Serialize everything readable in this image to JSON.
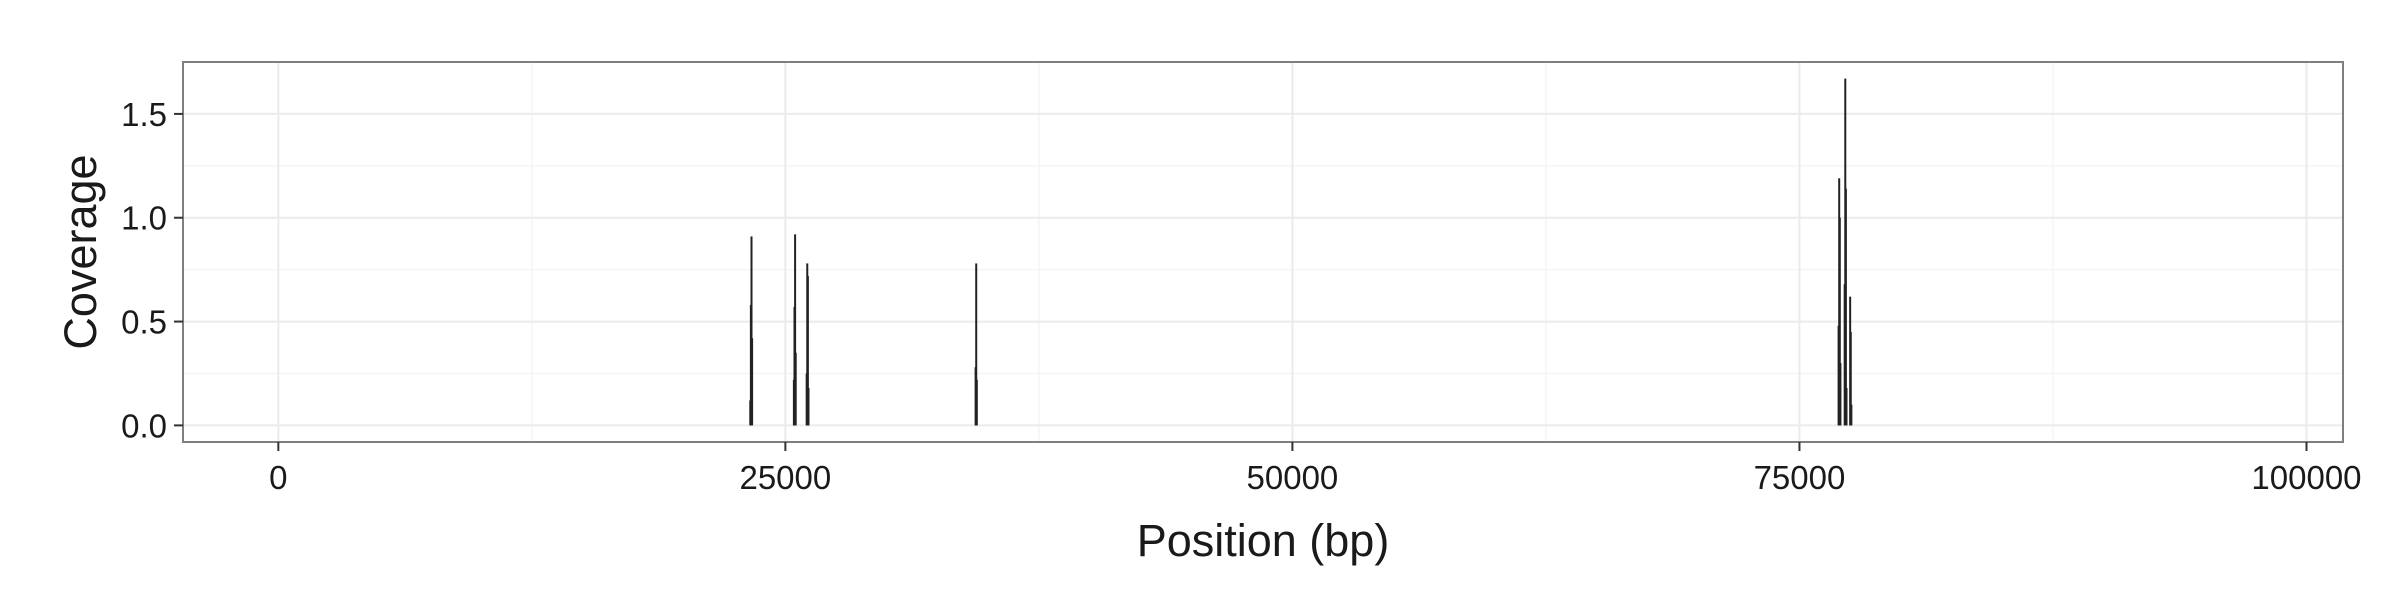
{
  "chart_data": {
    "type": "bar",
    "title": "",
    "xlabel": "Position (bp)",
    "ylabel": "Coverage",
    "xlim": [
      -4700,
      101800
    ],
    "ylim": [
      -0.08,
      1.75
    ],
    "x_ticks": [
      0,
      25000,
      50000,
      75000,
      100000
    ],
    "x_tick_labels": [
      "0",
      "25000",
      "50000",
      "75000",
      "100000"
    ],
    "y_ticks": [
      0.0,
      0.5,
      1.0,
      1.5
    ],
    "y_tick_labels": [
      "0.0",
      "0.5",
      "1.0",
      "1.5"
    ],
    "grid": true,
    "legend": "none",
    "colors": {
      "panel_background": "#ffffff",
      "panel_border": "#7f7f7f",
      "grid_major": "#ebebeb",
      "grid_minor": "#f5f5f5",
      "bars": "#222222",
      "ticks": "#333333"
    },
    "series": [
      {
        "x": [
          23270,
          23300,
          23330,
          23360,
          25420,
          25450,
          25480,
          25510,
          26050,
          26080,
          26110,
          26140,
          34380,
          34410,
          34440,
          76930,
          76960,
          76990,
          77020,
          77230,
          77260,
          77290,
          77320,
          77500,
          77530,
          77560
        ],
        "values": [
          0.12,
          0.58,
          0.91,
          0.42,
          0.22,
          0.57,
          0.92,
          0.35,
          0.25,
          0.78,
          0.72,
          0.18,
          0.28,
          0.78,
          0.22,
          0.48,
          1.19,
          1.0,
          0.3,
          0.68,
          1.67,
          1.14,
          0.18,
          0.62,
          0.45,
          0.1
        ]
      }
    ]
  }
}
